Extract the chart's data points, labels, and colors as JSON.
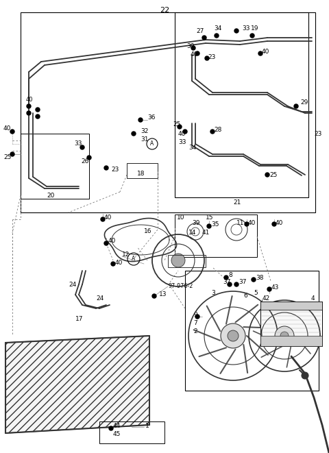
{
  "bg_color": "#ffffff",
  "fig_width": 4.8,
  "fig_height": 6.61,
  "dpi": 100
}
